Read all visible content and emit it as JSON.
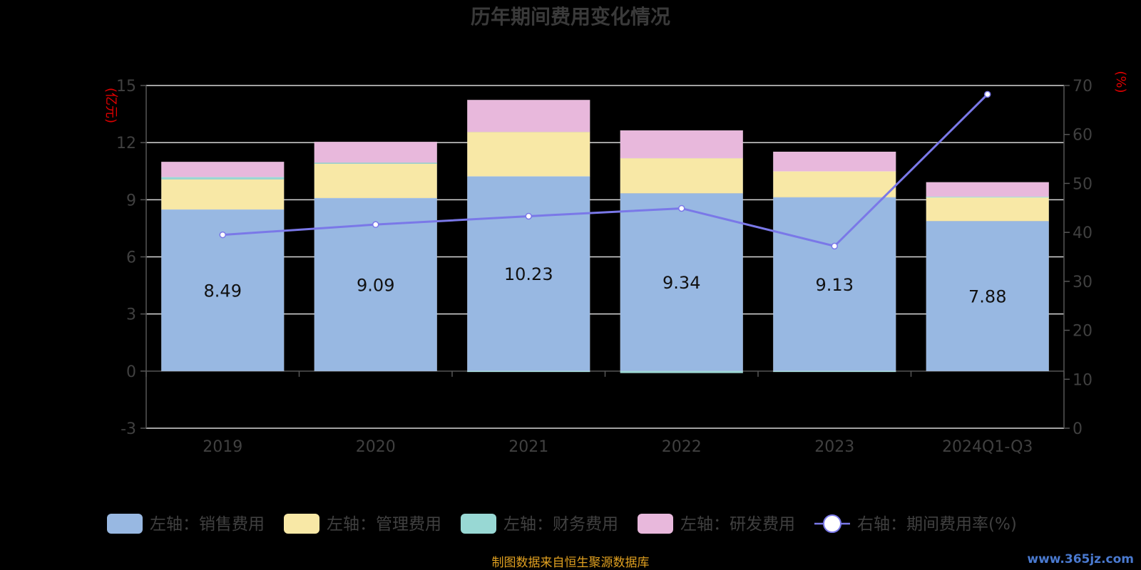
{
  "chart_data": {
    "type": "bar",
    "stacked": true,
    "title": "历年期间费用变化情况",
    "categories": [
      "2019",
      "2020",
      "2021",
      "2022",
      "2023",
      "2024Q1-Q3"
    ],
    "left_axis": {
      "unit_label": "(亿元)",
      "ylim": [
        -3,
        15
      ],
      "ticks": [
        -3,
        0,
        3,
        6,
        9,
        12,
        15
      ]
    },
    "right_axis": {
      "unit_label": "(%)",
      "ylim": [
        0,
        70
      ],
      "ticks": [
        0,
        10,
        20,
        30,
        40,
        50,
        60,
        70
      ]
    },
    "series": [
      {
        "name": "左轴：销售费用",
        "axis": "left",
        "color": "#98b8e2",
        "values": [
          8.49,
          9.09,
          10.23,
          9.34,
          9.13,
          7.88
        ],
        "show_labels": true
      },
      {
        "name": "左轴：管理费用",
        "axis": "left",
        "color": "#f8e8a6",
        "values": [
          1.58,
          1.8,
          2.33,
          1.84,
          1.36,
          1.27
        ]
      },
      {
        "name": "左轴：财务费用",
        "axis": "left",
        "color": "#98d8d4",
        "values": [
          0.12,
          0.06,
          -0.03,
          -0.1,
          -0.02,
          0.01
        ]
      },
      {
        "name": "左轴：研发费用",
        "axis": "left",
        "color": "#e8b8dc",
        "values": [
          0.8,
          1.09,
          1.68,
          1.46,
          1.03,
          0.76
        ]
      },
      {
        "name": "右轴：期间费用率(%)",
        "axis": "right",
        "type": "line",
        "color": "#7a78e8",
        "values": [
          39.5,
          41.6,
          43.3,
          44.9,
          37.2,
          68.2
        ]
      }
    ],
    "grid": true,
    "legend_position": "bottom"
  },
  "source_text": "制图数据来自恒生聚源数据库",
  "watermark_text": "www.365jz.com"
}
